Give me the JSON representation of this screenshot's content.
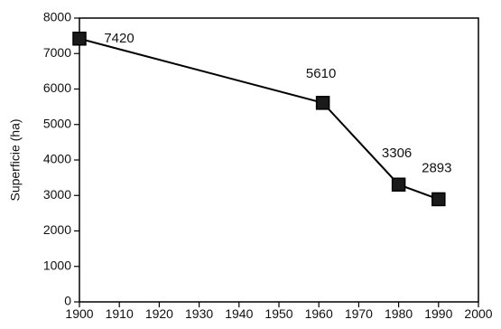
{
  "chart_data": {
    "type": "line",
    "title": "",
    "xlabel": "",
    "ylabel": "Superficie (ha)",
    "xlim": [
      1900,
      2000
    ],
    "ylim": [
      0,
      8000
    ],
    "x_ticks": [
      1900,
      1910,
      1920,
      1930,
      1940,
      1950,
      1960,
      1970,
      1980,
      1990,
      2000
    ],
    "y_ticks": [
      0,
      1000,
      2000,
      3000,
      4000,
      5000,
      6000,
      7000,
      8000
    ],
    "grid": false,
    "legend": "none",
    "series": [
      {
        "x": [
          1900,
          1961,
          1980,
          1990
        ],
        "values": [
          7420,
          5610,
          3306,
          2893
        ],
        "labels": [
          "7420",
          "5610",
          "3306",
          "2893"
        ],
        "color": "#000000",
        "marker": "square",
        "marker_fill": "#1a1a1a"
      }
    ]
  }
}
